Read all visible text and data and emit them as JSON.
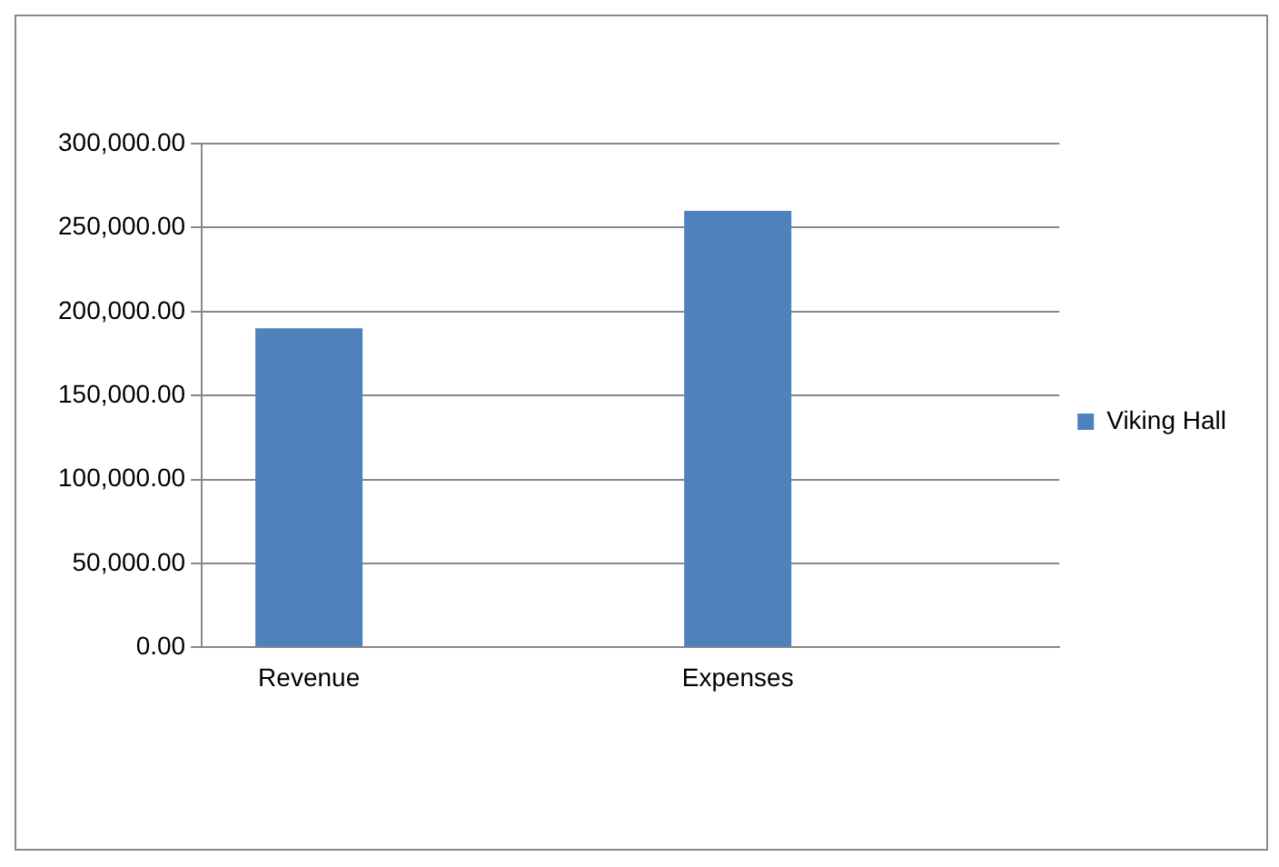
{
  "chart_data": {
    "type": "bar",
    "categories": [
      "Revenue",
      null,
      "Expenses",
      null
    ],
    "series": [
      {
        "name": "Viking Hall",
        "color": "#4f81bd",
        "values": [
          190000,
          null,
          260000,
          null
        ]
      }
    ],
    "ylim": [
      0,
      300000
    ],
    "yticks": [
      {
        "value": 0,
        "label": "0.00"
      },
      {
        "value": 50000,
        "label": "50,000.00"
      },
      {
        "value": 100000,
        "label": "100,000.00"
      },
      {
        "value": 150000,
        "label": "150,000.00"
      },
      {
        "value": 200000,
        "label": "200,000.00"
      },
      {
        "value": 250000,
        "label": "250,000.00"
      },
      {
        "value": 300000,
        "label": "300,000.00"
      }
    ],
    "grid": "y",
    "legend": "right"
  }
}
